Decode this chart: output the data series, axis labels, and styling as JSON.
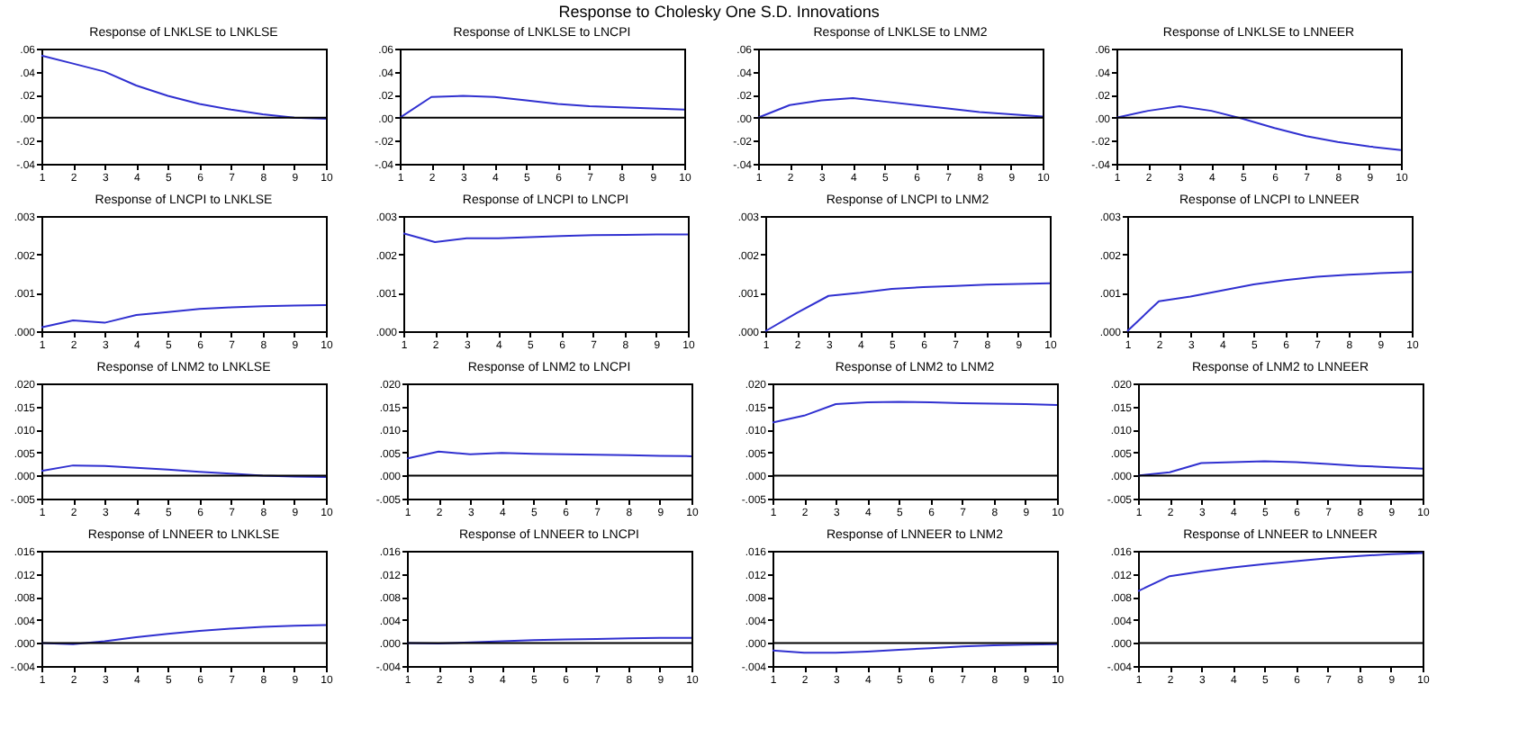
{
  "chart_data": [
    {
      "type": "line",
      "title": "Response of LNKLSE to LNKLSE",
      "annotations": [
        "Response to Cholesky One S.D. Innovations"
      ],
      "x": [
        1,
        2,
        3,
        4,
        5,
        6,
        7,
        8,
        9,
        10
      ],
      "series": [
        {
          "color": "#3030d0",
          "values": [
            0.054,
            0.047,
            0.04,
            0.028,
            0.019,
            0.012,
            0.007,
            0.003,
            0.0,
            -0.001
          ]
        }
      ],
      "xlim": [
        1,
        10
      ],
      "xticks": [
        1,
        2,
        3,
        4,
        5,
        6,
        7,
        8,
        9,
        10
      ],
      "ylim": [
        -0.04,
        0.06
      ],
      "yticks": [
        {
          "value": -0.04,
          "label": "-.04"
        },
        {
          "value": -0.02,
          "label": "-.02"
        },
        {
          "value": 0,
          "label": ".00"
        },
        {
          "value": 0.02,
          "label": ".02"
        },
        {
          "value": 0.04,
          "label": ".04"
        },
        {
          "value": 0.06,
          "label": ".06"
        }
      ],
      "ref_lines": [
        {
          "axis": "y",
          "value": 0,
          "color": "#000000"
        }
      ],
      "grid": false,
      "legend": false
    },
    {
      "type": "line",
      "title": "Response of LNKLSE to LNCPI",
      "x": [
        1,
        2,
        3,
        4,
        5,
        6,
        7,
        8,
        9,
        10
      ],
      "series": [
        {
          "color": "#3030d0",
          "values": [
            0,
            0.018,
            0.019,
            0.018,
            0.015,
            0.012,
            0.01,
            0.009,
            0.008,
            0.007
          ]
        }
      ],
      "xlim": [
        1,
        10
      ],
      "xticks": [
        1,
        2,
        3,
        4,
        5,
        6,
        7,
        8,
        9,
        10
      ],
      "ylim": [
        -0.04,
        0.06
      ],
      "yticks": [
        {
          "value": -0.04,
          "label": "-.04"
        },
        {
          "value": -0.02,
          "label": "-.02"
        },
        {
          "value": 0,
          "label": ".00"
        },
        {
          "value": 0.02,
          "label": ".02"
        },
        {
          "value": 0.04,
          "label": ".04"
        },
        {
          "value": 0.06,
          "label": ".06"
        }
      ],
      "ref_lines": [
        {
          "axis": "y",
          "value": 0,
          "color": "#000000"
        }
      ],
      "grid": false,
      "legend": false
    },
    {
      "type": "line",
      "title": "Response of LNKLSE to LNM2",
      "x": [
        1,
        2,
        3,
        4,
        5,
        6,
        7,
        8,
        9,
        10
      ],
      "series": [
        {
          "color": "#3030d0",
          "values": [
            0,
            0.011,
            0.015,
            0.017,
            0.014,
            0.011,
            0.008,
            0.005,
            0.003,
            0.001
          ]
        }
      ],
      "xlim": [
        1,
        10
      ],
      "xticks": [
        1,
        2,
        3,
        4,
        5,
        6,
        7,
        8,
        9,
        10
      ],
      "ylim": [
        -0.04,
        0.06
      ],
      "yticks": [
        {
          "value": -0.04,
          "label": "-.04"
        },
        {
          "value": -0.02,
          "label": "-.02"
        },
        {
          "value": 0,
          "label": ".00"
        },
        {
          "value": 0.02,
          "label": ".02"
        },
        {
          "value": 0.04,
          "label": ".04"
        },
        {
          "value": 0.06,
          "label": ".06"
        }
      ],
      "ref_lines": [
        {
          "axis": "y",
          "value": 0,
          "color": "#000000"
        }
      ],
      "grid": false,
      "legend": false
    },
    {
      "type": "line",
      "title": "Response of LNKLSE to LNNEER",
      "x": [
        1,
        2,
        3,
        4,
        5,
        6,
        7,
        8,
        9,
        10
      ],
      "series": [
        {
          "color": "#3030d0",
          "values": [
            0,
            0.006,
            0.01,
            0.006,
            -0.001,
            -0.009,
            -0.016,
            -0.021,
            -0.025,
            -0.028
          ]
        }
      ],
      "xlim": [
        1,
        10
      ],
      "xticks": [
        1,
        2,
        3,
        4,
        5,
        6,
        7,
        8,
        9,
        10
      ],
      "ylim": [
        -0.04,
        0.06
      ],
      "yticks": [
        {
          "value": -0.04,
          "label": "-.04"
        },
        {
          "value": -0.02,
          "label": "-.02"
        },
        {
          "value": 0,
          "label": ".00"
        },
        {
          "value": 0.02,
          "label": ".02"
        },
        {
          "value": 0.04,
          "label": ".04"
        },
        {
          "value": 0.06,
          "label": ".06"
        }
      ],
      "ref_lines": [
        {
          "axis": "y",
          "value": 0,
          "color": "#000000"
        }
      ],
      "grid": false,
      "legend": false
    },
    {
      "type": "line",
      "title": "Response of LNCPI to LNKLSE",
      "x": [
        1,
        2,
        3,
        4,
        5,
        6,
        7,
        8,
        9,
        10
      ],
      "series": [
        {
          "color": "#3030d0",
          "values": [
            0.0001,
            0.00028,
            0.00022,
            0.00042,
            0.0005,
            0.00058,
            0.00062,
            0.00065,
            0.00067,
            0.00068
          ]
        }
      ],
      "xlim": [
        1,
        10
      ],
      "xticks": [
        1,
        2,
        3,
        4,
        5,
        6,
        7,
        8,
        9,
        10
      ],
      "ylim": [
        0,
        0.003
      ],
      "yticks": [
        {
          "value": 0,
          "label": ".000"
        },
        {
          "value": 0.001,
          "label": ".001"
        },
        {
          "value": 0.002,
          "label": ".002"
        },
        {
          "value": 0.003,
          "label": ".003"
        }
      ],
      "grid": false,
      "legend": false
    },
    {
      "type": "line",
      "title": "Response of LNCPI to LNCPI",
      "x": [
        1,
        2,
        3,
        4,
        5,
        6,
        7,
        8,
        9,
        10
      ],
      "series": [
        {
          "color": "#3030d0",
          "values": [
            0.00255,
            0.00232,
            0.00242,
            0.00242,
            0.00245,
            0.00248,
            0.0025,
            0.00251,
            0.00252,
            0.00252
          ]
        }
      ],
      "xlim": [
        1,
        10
      ],
      "xticks": [
        1,
        2,
        3,
        4,
        5,
        6,
        7,
        8,
        9,
        10
      ],
      "ylim": [
        0,
        0.003
      ],
      "yticks": [
        {
          "value": 0,
          "label": ".000"
        },
        {
          "value": 0.001,
          "label": ".001"
        },
        {
          "value": 0.002,
          "label": ".002"
        },
        {
          "value": 0.003,
          "label": ".003"
        }
      ],
      "grid": false,
      "legend": false
    },
    {
      "type": "line",
      "title": "Response of LNCPI to LNM2",
      "x": [
        1,
        2,
        3,
        4,
        5,
        6,
        7,
        8,
        9,
        10
      ],
      "series": [
        {
          "color": "#3030d0",
          "values": [
            0,
            0.00048,
            0.00092,
            0.001,
            0.0011,
            0.00115,
            0.00118,
            0.00121,
            0.00123,
            0.00125
          ]
        }
      ],
      "xlim": [
        1,
        10
      ],
      "xticks": [
        1,
        2,
        3,
        4,
        5,
        6,
        7,
        8,
        9,
        10
      ],
      "ylim": [
        0,
        0.003
      ],
      "yticks": [
        {
          "value": 0,
          "label": ".000"
        },
        {
          "value": 0.001,
          "label": ".001"
        },
        {
          "value": 0.002,
          "label": ".002"
        },
        {
          "value": 0.003,
          "label": ".003"
        }
      ],
      "grid": false,
      "legend": false
    },
    {
      "type": "line",
      "title": "Response of LNCPI to LNNEER",
      "x": [
        1,
        2,
        3,
        4,
        5,
        6,
        7,
        8,
        9,
        10
      ],
      "series": [
        {
          "color": "#3030d0",
          "values": [
            0,
            0.00078,
            0.0009,
            0.00106,
            0.00122,
            0.00133,
            0.00142,
            0.00147,
            0.00151,
            0.00154
          ]
        }
      ],
      "xlim": [
        1,
        10
      ],
      "xticks": [
        1,
        2,
        3,
        4,
        5,
        6,
        7,
        8,
        9,
        10
      ],
      "ylim": [
        0,
        0.003
      ],
      "yticks": [
        {
          "value": 0,
          "label": ".000"
        },
        {
          "value": 0.001,
          "label": ".001"
        },
        {
          "value": 0.002,
          "label": ".002"
        },
        {
          "value": 0.003,
          "label": ".003"
        }
      ],
      "grid": false,
      "legend": false
    },
    {
      "type": "line",
      "title": "Response of LNM2 to LNKLSE",
      "x": [
        1,
        2,
        3,
        4,
        5,
        6,
        7,
        8,
        9,
        10
      ],
      "series": [
        {
          "color": "#3030d0",
          "values": [
            0.001,
            0.0022,
            0.0021,
            0.0017,
            0.0013,
            0.0008,
            0.0004,
            0.0,
            -0.0002,
            -0.0003
          ]
        }
      ],
      "xlim": [
        1,
        10
      ],
      "xticks": [
        1,
        2,
        3,
        4,
        5,
        6,
        7,
        8,
        9,
        10
      ],
      "ylim": [
        -0.005,
        0.02
      ],
      "yticks": [
        {
          "value": -0.005,
          "label": "-.005"
        },
        {
          "value": 0,
          "label": ".000"
        },
        {
          "value": 0.005,
          "label": ".005"
        },
        {
          "value": 0.01,
          "label": ".010"
        },
        {
          "value": 0.015,
          "label": ".015"
        },
        {
          "value": 0.02,
          "label": ".020"
        }
      ],
      "ref_lines": [
        {
          "axis": "y",
          "value": 0,
          "color": "#000000"
        }
      ],
      "grid": false,
      "legend": false
    },
    {
      "type": "line",
      "title": "Response of LNM2 to LNCPI",
      "x": [
        1,
        2,
        3,
        4,
        5,
        6,
        7,
        8,
        9,
        10
      ],
      "series": [
        {
          "color": "#3030d0",
          "values": [
            0.0037,
            0.0052,
            0.0046,
            0.0049,
            0.0047,
            0.0046,
            0.0045,
            0.0044,
            0.0043,
            0.0042
          ]
        }
      ],
      "xlim": [
        1,
        10
      ],
      "xticks": [
        1,
        2,
        3,
        4,
        5,
        6,
        7,
        8,
        9,
        10
      ],
      "ylim": [
        -0.005,
        0.02
      ],
      "yticks": [
        {
          "value": -0.005,
          "label": "-.005"
        },
        {
          "value": 0,
          "label": ".000"
        },
        {
          "value": 0.005,
          "label": ".005"
        },
        {
          "value": 0.01,
          "label": ".010"
        },
        {
          "value": 0.015,
          "label": ".015"
        },
        {
          "value": 0.02,
          "label": ".020"
        }
      ],
      "ref_lines": [
        {
          "axis": "y",
          "value": 0,
          "color": "#000000"
        }
      ],
      "grid": false,
      "legend": false
    },
    {
      "type": "line",
      "title": "Response of LNM2 to LNM2",
      "x": [
        1,
        2,
        3,
        4,
        5,
        6,
        7,
        8,
        9,
        10
      ],
      "series": [
        {
          "color": "#3030d0",
          "values": [
            0.0115,
            0.013,
            0.0155,
            0.0159,
            0.016,
            0.0159,
            0.0157,
            0.0156,
            0.0155,
            0.0153
          ]
        }
      ],
      "xlim": [
        1,
        10
      ],
      "xticks": [
        1,
        2,
        3,
        4,
        5,
        6,
        7,
        8,
        9,
        10
      ],
      "ylim": [
        -0.005,
        0.02
      ],
      "yticks": [
        {
          "value": -0.005,
          "label": "-.005"
        },
        {
          "value": 0,
          "label": ".000"
        },
        {
          "value": 0.005,
          "label": ".005"
        },
        {
          "value": 0.01,
          "label": ".010"
        },
        {
          "value": 0.015,
          "label": ".015"
        },
        {
          "value": 0.02,
          "label": ".020"
        }
      ],
      "ref_lines": [
        {
          "axis": "y",
          "value": 0,
          "color": "#000000"
        }
      ],
      "grid": false,
      "legend": false
    },
    {
      "type": "line",
      "title": "Response of LNM2 to LNNEER",
      "x": [
        1,
        2,
        3,
        4,
        5,
        6,
        7,
        8,
        9,
        10
      ],
      "series": [
        {
          "color": "#3030d0",
          "values": [
            0,
            0.0007,
            0.0027,
            0.0029,
            0.0031,
            0.0029,
            0.0025,
            0.0021,
            0.0018,
            0.0015
          ]
        }
      ],
      "xlim": [
        1,
        10
      ],
      "xticks": [
        1,
        2,
        3,
        4,
        5,
        6,
        7,
        8,
        9,
        10
      ],
      "ylim": [
        -0.005,
        0.02
      ],
      "yticks": [
        {
          "value": -0.005,
          "label": "-.005"
        },
        {
          "value": 0,
          "label": ".000"
        },
        {
          "value": 0.005,
          "label": ".005"
        },
        {
          "value": 0.01,
          "label": ".010"
        },
        {
          "value": 0.015,
          "label": ".015"
        },
        {
          "value": 0.02,
          "label": ".020"
        }
      ],
      "ref_lines": [
        {
          "axis": "y",
          "value": 0,
          "color": "#000000"
        }
      ],
      "grid": false,
      "legend": false
    },
    {
      "type": "line",
      "title": "Response of LNNEER to LNKLSE",
      "x": [
        1,
        2,
        3,
        4,
        5,
        6,
        7,
        8,
        9,
        10
      ],
      "series": [
        {
          "color": "#3030d0",
          "values": [
            0,
            -0.0002,
            0.0003,
            0.001,
            0.0016,
            0.0021,
            0.0025,
            0.0028,
            0.003,
            0.0031
          ]
        }
      ],
      "xlim": [
        1,
        10
      ],
      "xticks": [
        1,
        2,
        3,
        4,
        5,
        6,
        7,
        8,
        9,
        10
      ],
      "ylim": [
        -0.004,
        0.016
      ],
      "yticks": [
        {
          "value": -0.004,
          "label": "-.004"
        },
        {
          "value": 0,
          "label": ".000"
        },
        {
          "value": 0.004,
          "label": ".004"
        },
        {
          "value": 0.008,
          "label": ".008"
        },
        {
          "value": 0.012,
          "label": ".012"
        },
        {
          "value": 0.016,
          "label": ".016"
        }
      ],
      "ref_lines": [
        {
          "axis": "y",
          "value": 0,
          "color": "#000000"
        }
      ],
      "grid": false,
      "legend": false
    },
    {
      "type": "line",
      "title": "Response of LNNEER to LNCPI",
      "x": [
        1,
        2,
        3,
        4,
        5,
        6,
        7,
        8,
        9,
        10
      ],
      "series": [
        {
          "color": "#3030d0",
          "values": [
            0,
            -0.0001,
            0.0001,
            0.0003,
            0.0005,
            0.0006,
            0.0007,
            0.0008,
            0.0009,
            0.0009
          ]
        }
      ],
      "xlim": [
        1,
        10
      ],
      "xticks": [
        1,
        2,
        3,
        4,
        5,
        6,
        7,
        8,
        9,
        10
      ],
      "ylim": [
        -0.004,
        0.016
      ],
      "yticks": [
        {
          "value": -0.004,
          "label": "-.004"
        },
        {
          "value": 0,
          "label": ".000"
        },
        {
          "value": 0.004,
          "label": ".004"
        },
        {
          "value": 0.008,
          "label": ".008"
        },
        {
          "value": 0.012,
          "label": ".012"
        },
        {
          "value": 0.016,
          "label": ".016"
        }
      ],
      "ref_lines": [
        {
          "axis": "y",
          "value": 0,
          "color": "#000000"
        }
      ],
      "grid": false,
      "legend": false
    },
    {
      "type": "line",
      "title": "Response of LNNEER to LNM2",
      "x": [
        1,
        2,
        3,
        4,
        5,
        6,
        7,
        8,
        9,
        10
      ],
      "series": [
        {
          "color": "#3030d0",
          "values": [
            -0.0013,
            -0.0017,
            -0.0017,
            -0.0015,
            -0.0012,
            -0.0009,
            -0.0006,
            -0.0004,
            -0.0003,
            -0.0002
          ]
        }
      ],
      "xlim": [
        1,
        10
      ],
      "xticks": [
        1,
        2,
        3,
        4,
        5,
        6,
        7,
        8,
        9,
        10
      ],
      "ylim": [
        -0.004,
        0.016
      ],
      "yticks": [
        {
          "value": -0.004,
          "label": "-.004"
        },
        {
          "value": 0,
          "label": ".000"
        },
        {
          "value": 0.004,
          "label": ".004"
        },
        {
          "value": 0.008,
          "label": ".008"
        },
        {
          "value": 0.012,
          "label": ".012"
        },
        {
          "value": 0.016,
          "label": ".016"
        }
      ],
      "ref_lines": [
        {
          "axis": "y",
          "value": 0,
          "color": "#000000"
        }
      ],
      "grid": false,
      "legend": false
    },
    {
      "type": "line",
      "title": "Response of LNNEER to LNNEER",
      "x": [
        1,
        2,
        3,
        4,
        5,
        6,
        7,
        8,
        9,
        10
      ],
      "series": [
        {
          "color": "#3030d0",
          "values": [
            0.009,
            0.0116,
            0.0124,
            0.0131,
            0.0137,
            0.0142,
            0.0147,
            0.0151,
            0.0154,
            0.0156
          ]
        }
      ],
      "xlim": [
        1,
        10
      ],
      "xticks": [
        1,
        2,
        3,
        4,
        5,
        6,
        7,
        8,
        9,
        10
      ],
      "ylim": [
        -0.004,
        0.016
      ],
      "yticks": [
        {
          "value": -0.004,
          "label": "-.004"
        },
        {
          "value": 0,
          "label": ".000"
        },
        {
          "value": 0.004,
          "label": ".004"
        },
        {
          "value": 0.008,
          "label": ".008"
        },
        {
          "value": 0.012,
          "label": ".012"
        },
        {
          "value": 0.016,
          "label": ".016"
        }
      ],
      "ref_lines": [
        {
          "axis": "y",
          "value": 0,
          "color": "#000000"
        }
      ],
      "grid": false,
      "legend": false
    }
  ]
}
